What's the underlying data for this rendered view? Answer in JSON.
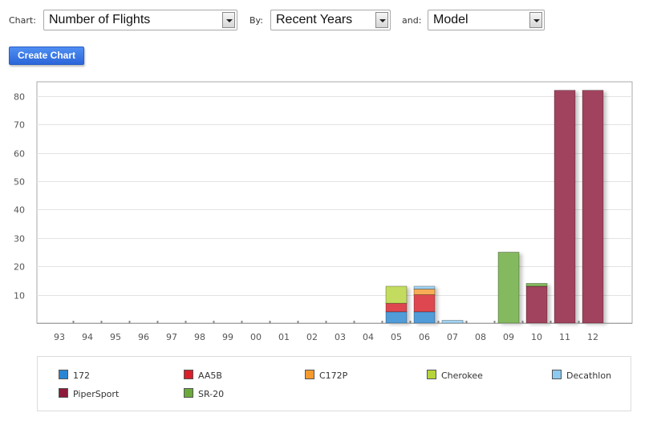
{
  "controls": {
    "chart_label": "Chart:",
    "chart_select": "Number of Flights",
    "by_label": "By:",
    "by_select": "Recent Years",
    "and_label": "and:",
    "and_select": "Model",
    "create_button": "Create Chart"
  },
  "chart_data": {
    "type": "bar",
    "stacked": true,
    "categories": [
      "93",
      "94",
      "95",
      "96",
      "97",
      "98",
      "99",
      "00",
      "01",
      "02",
      "03",
      "04",
      "05",
      "06",
      "07",
      "08",
      "09",
      "10",
      "11",
      "12"
    ],
    "ylim": [
      0,
      85
    ],
    "yticks": [
      10,
      20,
      30,
      40,
      50,
      60,
      70,
      80
    ],
    "grid": true,
    "legend_position": "bottom",
    "series": [
      {
        "name": "172",
        "color": "#2a86d1",
        "values": [
          0,
          0,
          0,
          0,
          0,
          0,
          0,
          0,
          0,
          0,
          0,
          0,
          4,
          4,
          0,
          0,
          0,
          0,
          0,
          0
        ]
      },
      {
        "name": "AA5B",
        "color": "#d81f2a",
        "values": [
          0,
          0,
          0,
          0,
          0,
          0,
          0,
          0,
          0,
          0,
          0,
          0,
          3,
          6,
          0,
          0,
          0,
          0,
          0,
          0
        ]
      },
      {
        "name": "C172P",
        "color": "#f59a2f",
        "values": [
          0,
          0,
          0,
          0,
          0,
          0,
          0,
          0,
          0,
          0,
          0,
          0,
          0,
          2,
          0,
          0,
          0,
          0,
          0,
          0
        ]
      },
      {
        "name": "Cherokee",
        "color": "#b6d43c",
        "values": [
          0,
          0,
          0,
          0,
          0,
          0,
          0,
          0,
          0,
          0,
          0,
          0,
          6,
          0,
          0,
          0,
          0,
          0,
          0,
          0
        ]
      },
      {
        "name": "Decathlon",
        "color": "#8ec9f0",
        "values": [
          0,
          0,
          0,
          0,
          0,
          0,
          0,
          0,
          0,
          0,
          0,
          0,
          0,
          1,
          1,
          0,
          0,
          0,
          0,
          0
        ]
      },
      {
        "name": "PiperSport",
        "color": "#8c1a3a",
        "values": [
          0,
          0,
          0,
          0,
          0,
          0,
          0,
          0,
          0,
          0,
          0,
          0,
          0,
          0,
          0,
          0,
          0,
          13,
          82,
          82
        ]
      },
      {
        "name": "SR-20",
        "color": "#6aaa3c",
        "values": [
          0,
          0,
          0,
          0,
          0,
          0,
          0,
          0,
          0,
          0,
          0,
          0,
          0,
          0,
          0,
          0,
          25,
          1,
          0,
          0
        ]
      }
    ]
  }
}
